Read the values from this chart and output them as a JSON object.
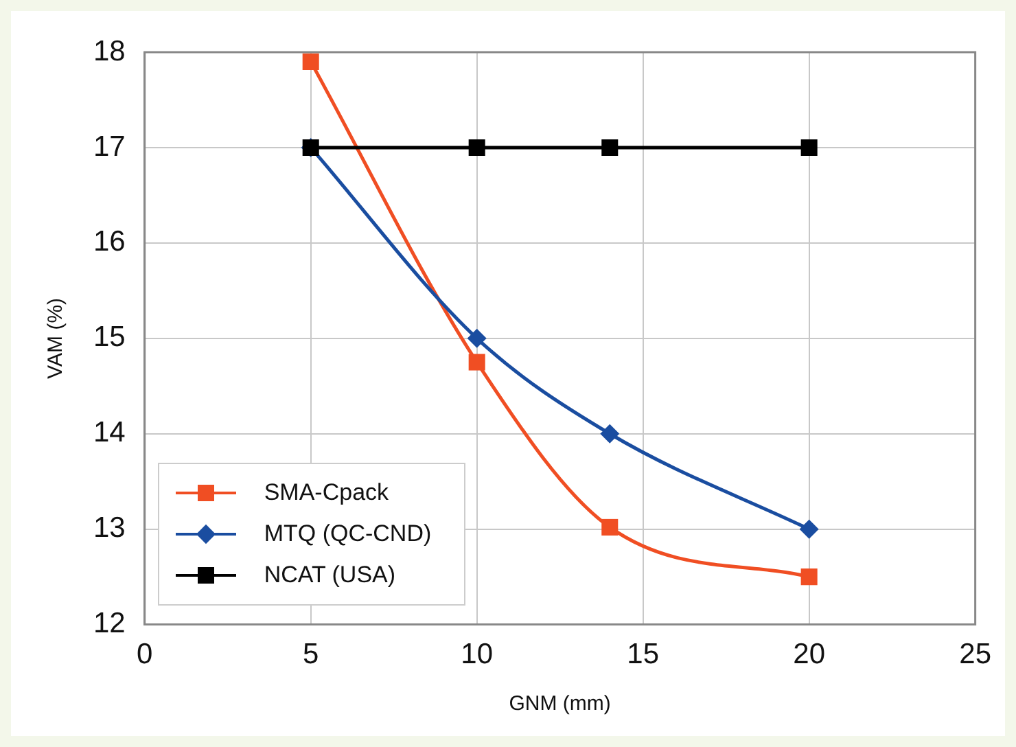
{
  "chart_data": {
    "type": "line",
    "xlabel": "GNM (mm)",
    "ylabel": "VAM (%)",
    "x": [
      5,
      10,
      14,
      20
    ],
    "series": [
      {
        "name": "SMA-Cpack",
        "color": "#f04e23",
        "marker": "square",
        "values": [
          17.9,
          14.75,
          13.02,
          12.5
        ]
      },
      {
        "name": "MTQ (QC-CND)",
        "color": "#1a4da0",
        "marker": "diamond",
        "values": [
          17,
          15,
          14,
          13
        ]
      },
      {
        "name": "NCAT (USA)",
        "color": "#000000",
        "marker": "square",
        "values": [
          17,
          17,
          17,
          17
        ]
      }
    ],
    "xlim": [
      0,
      25
    ],
    "xticks": [
      0,
      5,
      10,
      15,
      20,
      25
    ],
    "ylim": [
      12,
      18
    ],
    "yticks": [
      12,
      13,
      14,
      15,
      16,
      17,
      18
    ],
    "grid": true,
    "legend": "bottom left"
  }
}
